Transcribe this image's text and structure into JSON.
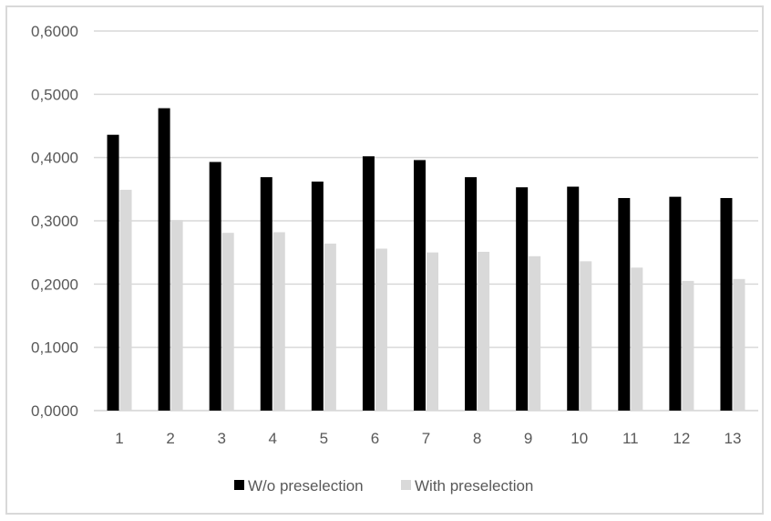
{
  "chart_data": {
    "type": "bar",
    "categories": [
      "1",
      "2",
      "3",
      "4",
      "5",
      "6",
      "7",
      "8",
      "9",
      "10",
      "11",
      "12",
      "13"
    ],
    "series": [
      {
        "name": "W/o preselection",
        "color": "#000000",
        "values": [
          0.436,
          0.478,
          0.393,
          0.369,
          0.362,
          0.402,
          0.396,
          0.369,
          0.353,
          0.354,
          0.336,
          0.338,
          0.336
        ]
      },
      {
        "name": "With preselection",
        "color": "#d9d9d9",
        "values": [
          0.349,
          0.301,
          0.281,
          0.282,
          0.264,
          0.256,
          0.25,
          0.251,
          0.244,
          0.236,
          0.226,
          0.205,
          0.208
        ]
      }
    ],
    "y_ticks": [
      "0,0000",
      "0,1000",
      "0,2000",
      "0,3000",
      "0,4000",
      "0,5000",
      "0,6000"
    ],
    "ylim": [
      0,
      0.6
    ],
    "grid": true,
    "legend_position": "bottom",
    "title": "",
    "xlabel": "",
    "ylabel": ""
  }
}
